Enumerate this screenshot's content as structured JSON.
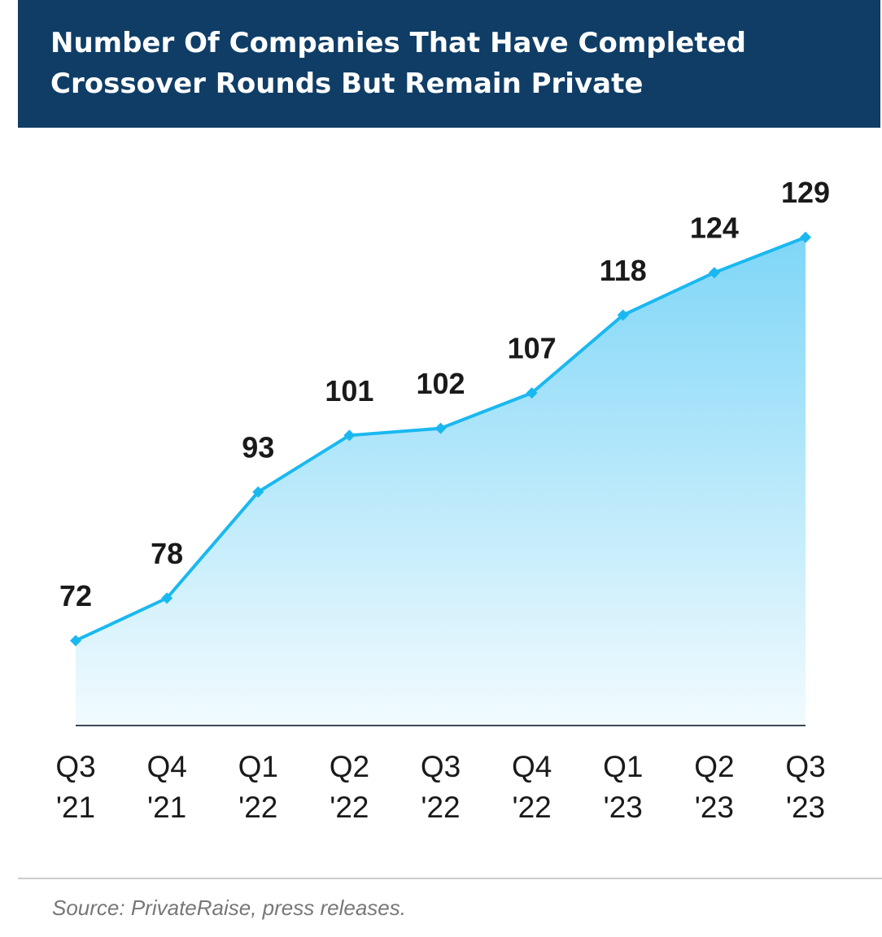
{
  "chart_data": {
    "type": "area",
    "title": "Number Of Companies That Have Completed Crossover Rounds But Remain Private",
    "categories": [
      "Q3 '21",
      "Q4 '21",
      "Q1 '22",
      "Q2 '22",
      "Q3 '22",
      "Q4 '22",
      "Q1 '23",
      "Q2 '23",
      "Q3 '23"
    ],
    "values": [
      72,
      78,
      93,
      101,
      102,
      107,
      118,
      124,
      129
    ],
    "color": "#1ab8f0",
    "ylim": [
      60,
      130
    ],
    "source": "Source: PrivateRaise, press releases."
  }
}
